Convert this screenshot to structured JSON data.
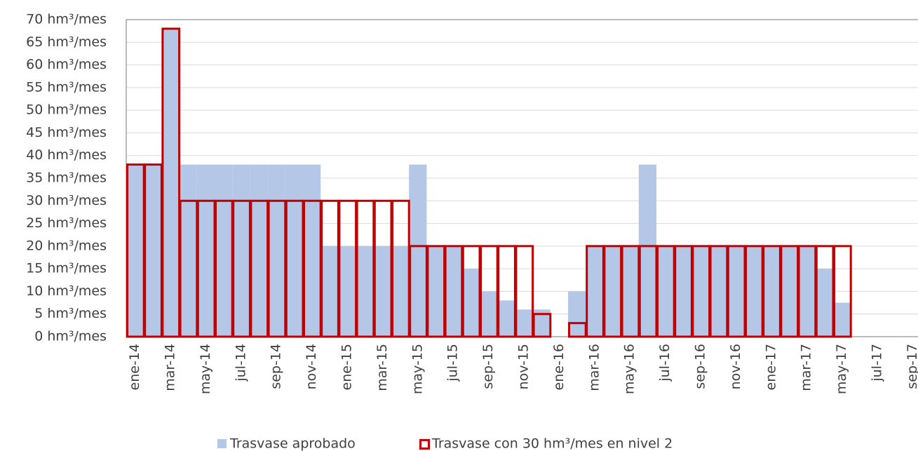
{
  "chart_data": {
    "type": "bar",
    "categories": [
      "ene-14",
      null,
      "mar-14",
      null,
      "may-14",
      null,
      "jul-14",
      null,
      "sep-14",
      null,
      "nov-14",
      null,
      "ene-15",
      null,
      "mar-15",
      null,
      "may-15",
      null,
      "jul-15",
      null,
      "sep-15",
      null,
      "nov-15",
      null,
      "ene-16",
      null,
      "mar-16",
      null,
      "may-16",
      null,
      "jul-16",
      null,
      "sep-16",
      null,
      "nov-16",
      null,
      "ene-17",
      null,
      "mar-17",
      null,
      "may-17",
      null,
      "jul-17",
      null,
      "sep-17"
    ],
    "series": [
      {
        "name": "Trasvase aprobado",
        "color": "#b4c7e7",
        "values": [
          38,
          38,
          68,
          38,
          38,
          38,
          38,
          38,
          38,
          38,
          38,
          20,
          20,
          20,
          20,
          20,
          38,
          20,
          20,
          15,
          10,
          8,
          6,
          6,
          null,
          10,
          20,
          20,
          20,
          38,
          20,
          20,
          20,
          20,
          20,
          20,
          20,
          20,
          20,
          15,
          7.5,
          null,
          null,
          null,
          null
        ]
      },
      {
        "name": "Trasvase con 30 hm³/mes en nivel 2",
        "color": "#c00000",
        "values": [
          38,
          38,
          68,
          30,
          30,
          30,
          30,
          30,
          30,
          30,
          30,
          30,
          30,
          30,
          30,
          30,
          20,
          20,
          20,
          20,
          20,
          20,
          20,
          5,
          null,
          3,
          20,
          20,
          20,
          20,
          20,
          20,
          20,
          20,
          20,
          20,
          20,
          20,
          20,
          20,
          20,
          null,
          null,
          null,
          null
        ]
      }
    ],
    "ylim": [
      0,
      70
    ],
    "yticks": [
      {
        "value": 0,
        "label": "0 hm³/mes"
      },
      {
        "value": 5,
        "label": "5 hm³/mes"
      },
      {
        "value": 10,
        "label": "10 hm³/mes"
      },
      {
        "value": 15,
        "label": "15 hm³/mes"
      },
      {
        "value": 20,
        "label": "20 hm³/mes"
      },
      {
        "value": 25,
        "label": "25 hm³/mes"
      },
      {
        "value": 30,
        "label": "30 hm³/mes"
      },
      {
        "value": 35,
        "label": "35 hm³/mes"
      },
      {
        "value": 40,
        "label": "40 hm³/mes"
      },
      {
        "value": 45,
        "label": "45 hm³/mes"
      },
      {
        "value": 50,
        "label": "50 hm³/mes"
      },
      {
        "value": 55,
        "label": "55 hm³/mes"
      },
      {
        "value": 60,
        "label": "60 hm³/mes"
      },
      {
        "value": 65,
        "label": "65 hm³/mes"
      },
      {
        "value": 70,
        "label": "70 hm³/mes"
      }
    ],
    "grid": true
  }
}
